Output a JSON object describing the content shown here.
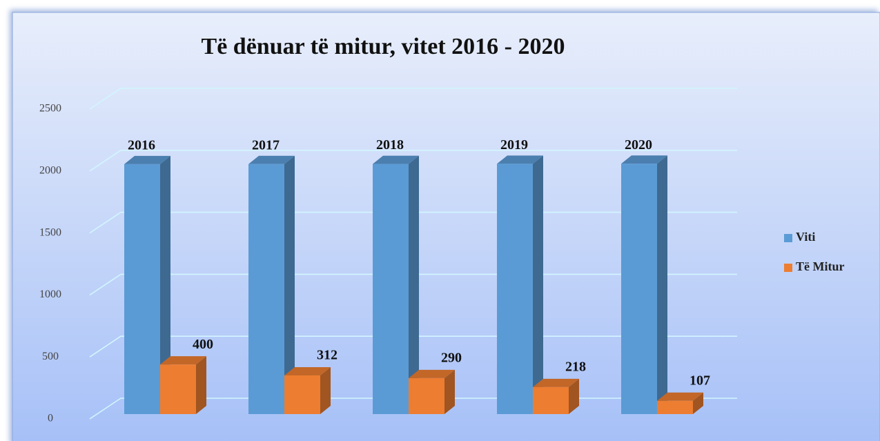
{
  "chart_data": {
    "type": "bar3d",
    "title": "Të dënuar të mitur, vitet 2016 - 2020",
    "series": [
      {
        "name": "Viti",
        "color": "#5b9bd5",
        "values": [
          2016,
          2017,
          2018,
          2019,
          2020
        ]
      },
      {
        "name": "Të Mitur",
        "color": "#ed7d31",
        "values": [
          400,
          312,
          290,
          218,
          107
        ]
      }
    ],
    "ylim": [
      0,
      2500
    ],
    "yticks": [
      0,
      500,
      1000,
      1500,
      2000,
      2500
    ],
    "grid": true,
    "legend": "right"
  }
}
